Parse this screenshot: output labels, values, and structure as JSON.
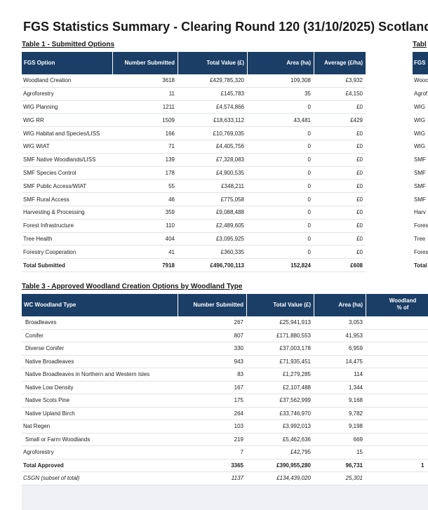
{
  "title": "FGS Statistics Summary - Clearing Round 120 (31/10/2025) Scotland",
  "table1": {
    "caption": "Table 1 - Submitted Options",
    "columns": [
      "FGS Option",
      "Number Submitted",
      "Total Value (£)",
      "Area (ha)",
      "Average (£/ha)"
    ],
    "rows": [
      [
        "Woodland Creation",
        "3618",
        "£429,785,320",
        "109,308",
        "£3,932"
      ],
      [
        "Agroforestry",
        "11",
        "£145,783",
        "35",
        "£4,150"
      ],
      [
        "WIG Planning",
        "1211",
        "£4,574,866",
        "0",
        "£0"
      ],
      [
        "WIG RR",
        "1509",
        "£18,633,112",
        "43,481",
        "£429"
      ],
      [
        "WIG Habitat and Species/LISS",
        "166",
        "£10,769,035",
        "0",
        "£0"
      ],
      [
        "WIG WIAT",
        "71",
        "£4,405,756",
        "0",
        "£0"
      ],
      [
        "SMF Native Woodlands/LISS",
        "139",
        "£7,328,083",
        "0",
        "£0"
      ],
      [
        "SMF Species Control",
        "178",
        "£4,900,535",
        "0",
        "£0"
      ],
      [
        "SMF Public Access/WIAT",
        "55",
        "£348,211",
        "0",
        "£0"
      ],
      [
        "SMF Rural Access",
        "46",
        "£775,058",
        "0",
        "£0"
      ],
      [
        "Harvesting & Processing",
        "359",
        "£9,088,488",
        "0",
        "£0"
      ],
      [
        "Forest Infrastructure",
        "110",
        "£2,489,605",
        "0",
        "£0"
      ],
      [
        "Tree Health",
        "404",
        "£3,095,925",
        "0",
        "£0"
      ],
      [
        "Forestry Cooperation",
        "41",
        "£360,335",
        "0",
        "£0"
      ],
      [
        "Total Submitted",
        "7918",
        "£496,700,113",
        "152,824",
        "£608"
      ]
    ]
  },
  "table2": {
    "caption": "Tabl",
    "header": "FGS",
    "rows": [
      "Wooc",
      "Agrof",
      "WIG",
      "WIG",
      "WIG",
      "WIG",
      "SMF",
      "SMF",
      "SMF",
      "SMF",
      "Harv",
      "Fores",
      "Tree",
      "Fores",
      "Total"
    ]
  },
  "table3": {
    "caption": "Table 3 - Approved Woodland Creation Options by Woodland Type",
    "columns": [
      "WC Woodland Type",
      "Number Submitted",
      "Total Value (£)",
      "Area (ha)"
    ],
    "extra_header": [
      "Woodland",
      "% of"
    ],
    "rows": [
      [
        "Broadleaves",
        "267",
        "£25,941,913",
        "3,053"
      ],
      [
        "Conifer",
        "807",
        "£171,880,553",
        "41,953"
      ],
      [
        "Diverse Conifer",
        "330",
        "£37,003,178",
        "6,959"
      ],
      [
        "Native Broadleaves",
        "943",
        "£71,935,451",
        "14,475"
      ],
      [
        "Native Broadleaves in Northern and Western Isles",
        "83",
        "£1,279,285",
        "114"
      ],
      [
        "Native Low Density",
        "167",
        "£2,107,488",
        "1,344"
      ],
      [
        "Native Scots Pine",
        "175",
        "£37,562,999",
        "9,168"
      ],
      [
        "Native Upland Birch",
        "264",
        "£33,746,970",
        "9,782"
      ],
      [
        "Nat Regen",
        "103",
        "£3,992,013",
        "9,198"
      ],
      [
        "Small or Farm Woodlands",
        "219",
        "£5,462,636",
        "669"
      ],
      [
        "Agroforestry",
        "7",
        "£42,795",
        "15"
      ],
      [
        "Total Approved",
        "3365",
        "£390,955,280",
        "96,731"
      ],
      [
        "CSGN (subset of total)",
        "1137",
        "£134,439,020",
        "25,301"
      ]
    ],
    "extra_total": "1"
  }
}
